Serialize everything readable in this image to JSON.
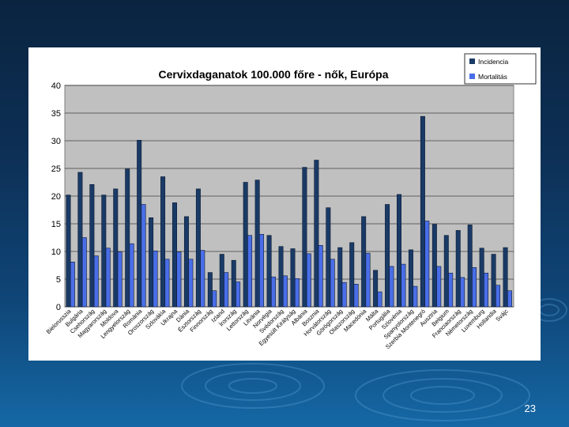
{
  "slide": {
    "page_number": "23"
  },
  "colors": {
    "incidence": "#1a3a66",
    "mortality": "#4a6ee8",
    "plot_bg": "#c0c0c0",
    "axis_text": "#000000"
  },
  "chart_data": {
    "type": "bar",
    "title": "Cervixdaganatok 100.000 főre - nők, Európa",
    "xlabel": "",
    "ylabel": "",
    "ylim": [
      0,
      40
    ],
    "yticks": [
      0,
      5,
      10,
      15,
      20,
      25,
      30,
      35,
      40
    ],
    "grid": true,
    "legend_position": "top-right",
    "categories": [
      "Bielorusszia",
      "Bulgária",
      "Csehország",
      "Magyarország",
      "Moldova",
      "Lengyelország",
      "Románia",
      "Oroszország",
      "Szlovákia",
      "Ukrajna",
      "Dánia",
      "Észtország",
      "Finnország",
      "Izland",
      "Írország",
      "Lettország",
      "Litvánia",
      "Norvégia",
      "Svédország",
      "Egyesült Királyság",
      "Albánia",
      "Bosznia",
      "Horvátország",
      "Görögország",
      "Olaszország",
      "Macedónia",
      "Málta",
      "Portugália",
      "Szlovénia",
      "Spanyolország",
      "Szerbia Montenegró",
      "Ausztria",
      "Belgium",
      "Franciaország",
      "Németország",
      "Luxemburg",
      "Hollandia",
      "Svájc"
    ],
    "category_labels": [
      "Bielorusszia",
      "Bulgária",
      "Csehország",
      "Magyarország",
      "Moldova",
      "Lengyelország",
      "Románia",
      "Oroszország",
      "Szlovákia",
      "Ukrajna",
      "Dánia",
      "Észtország",
      "Finnország",
      "Izland",
      "Írország",
      "Lettország",
      "Litvánia",
      "Norvégia",
      "Svédország",
      "Egyesült Királyság",
      "Albánia",
      "Bosznia",
      "Horvátország",
      "Görögország",
      "Olaszország",
      "Macedónia",
      "Málta",
      "Portugália",
      "Szlovénia",
      "Spanyolország",
      "Szerbia Montenegró",
      "Ausztria",
      "Belgium",
      "Franciaország",
      "Németország",
      "Luxemburg",
      "Hollandia",
      "Svájc"
    ],
    "series": [
      {
        "name": "Incidencia",
        "values": [
          20.2,
          24.3,
          22.1,
          20.2,
          21.3,
          24.9,
          30.1,
          16.1,
          23.5,
          18.8,
          16.3,
          21.3,
          6.2,
          9.5,
          8.4,
          22.5,
          22.9,
          12.9,
          10.9,
          10.5,
          25.2,
          26.5,
          17.9,
          10.7,
          11.6,
          16.3,
          6.6,
          18.5,
          20.3,
          10.3,
          34.4,
          14.9,
          12.9,
          13.8,
          14.8,
          10.6,
          9.5,
          10.7
        ]
      },
      {
        "name": "Mortalitás",
        "values": [
          8.1,
          12.5,
          9.2,
          10.6,
          9.9,
          11.4,
          18.5,
          10.1,
          8.6,
          9.9,
          8.6,
          10.2,
          2.9,
          6.2,
          4.5,
          12.9,
          13.1,
          5.4,
          5.6,
          5.1,
          9.6,
          11.1,
          8.6,
          4.4,
          4.1,
          9.7,
          2.7,
          7.3,
          7.7,
          3.7,
          15.5,
          7.3,
          6.1,
          5.3,
          7.1,
          6.1,
          3.9,
          2.9
        ]
      }
    ]
  }
}
